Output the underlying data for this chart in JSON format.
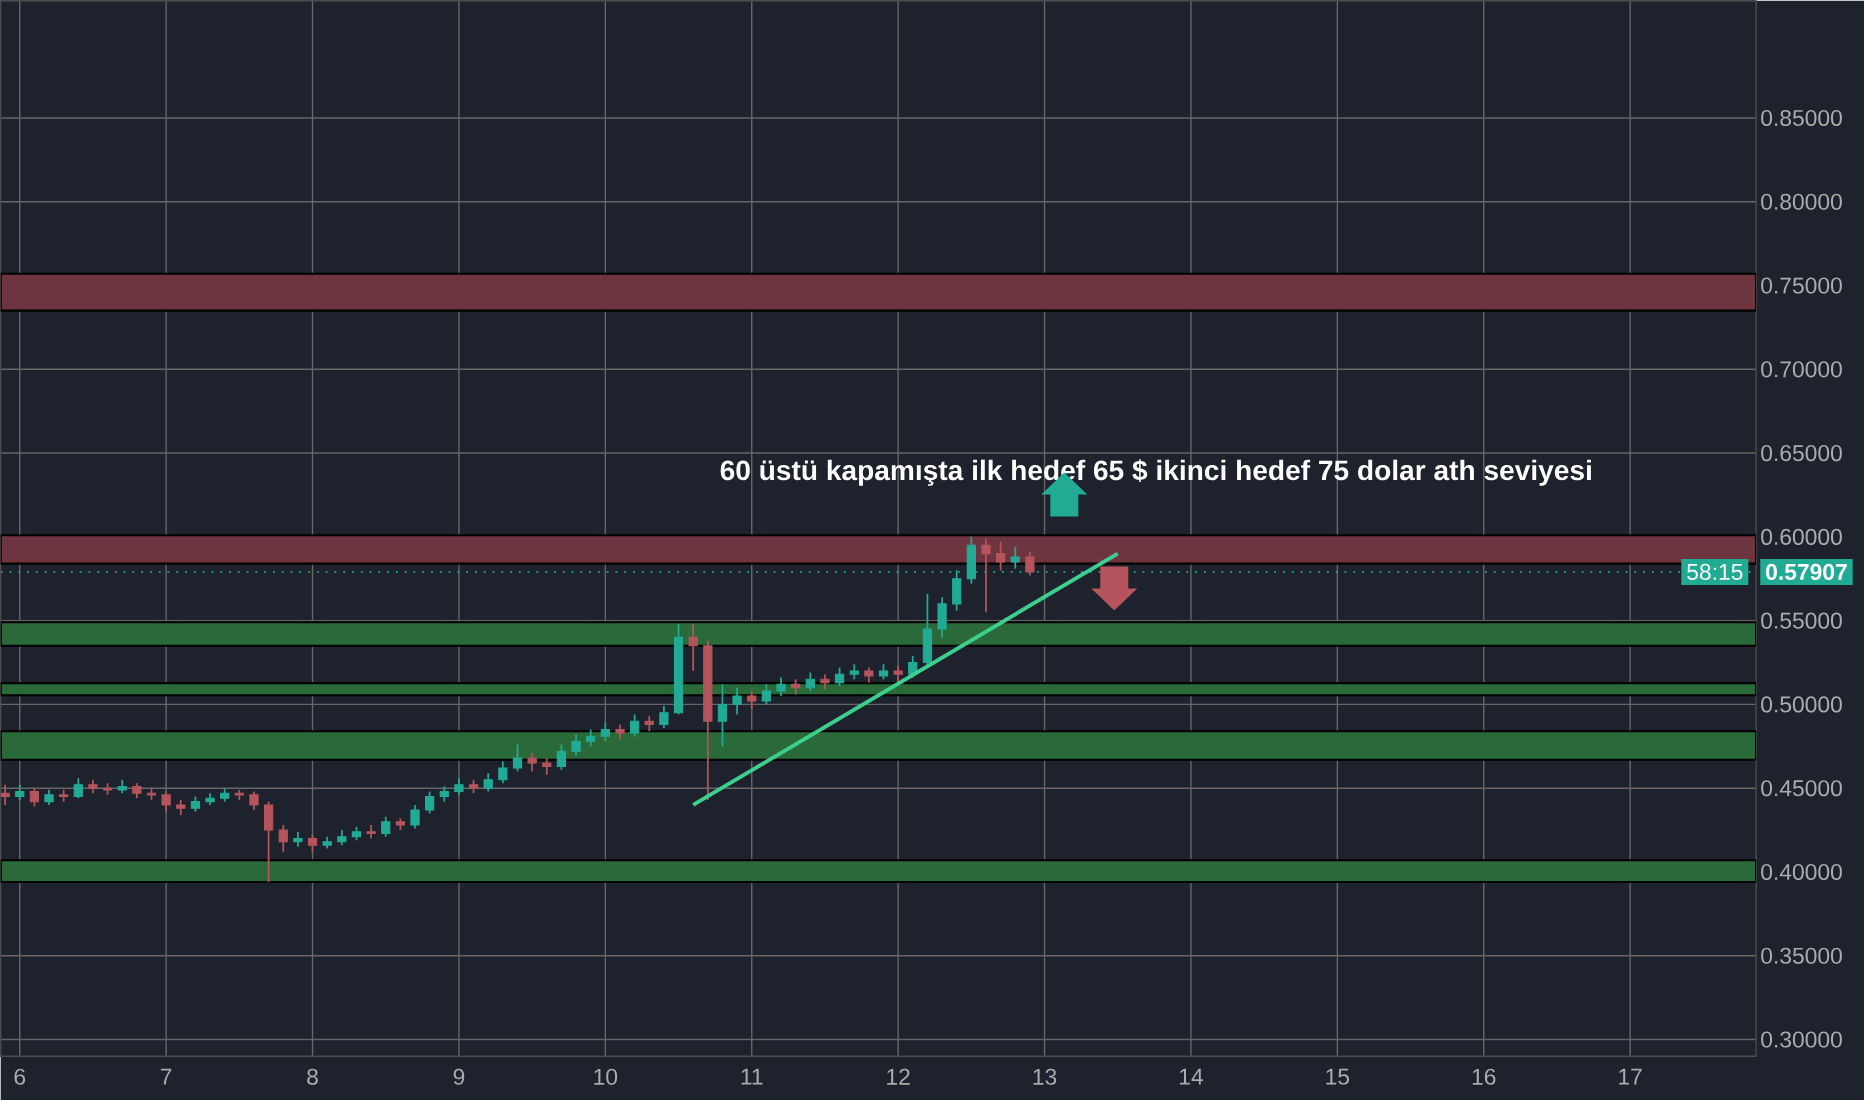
{
  "chart_data": {
    "type": "candlestick",
    "x": [
      5.9,
      6.0,
      6.1,
      6.2,
      6.3,
      6.4,
      6.5,
      6.6,
      6.7,
      6.8,
      6.9,
      7.0,
      7.1,
      7.2,
      7.3,
      7.4,
      7.5,
      7.6,
      7.7,
      7.8,
      7.9,
      8.0,
      8.1,
      8.2,
      8.3,
      8.4,
      8.5,
      8.6,
      8.7,
      8.8,
      8.9,
      9.0,
      9.1,
      9.2,
      9.3,
      9.4,
      9.5,
      9.6,
      9.7,
      9.8,
      9.9,
      10.0,
      10.1,
      10.2,
      10.3,
      10.4,
      10.5,
      10.6,
      10.7,
      10.8,
      10.9,
      11.0,
      11.1,
      11.2,
      11.3,
      11.4,
      11.5,
      11.6,
      11.7,
      11.8,
      11.9,
      12.0,
      12.1,
      12.2,
      12.3,
      12.4,
      12.5,
      12.6,
      12.7,
      12.8,
      12.9
    ],
    "ohlc": [
      [
        0.447,
        0.452,
        0.44,
        0.445
      ],
      [
        0.445,
        0.452,
        0.443,
        0.448
      ],
      [
        0.448,
        0.45,
        0.439,
        0.442
      ],
      [
        0.442,
        0.449,
        0.44,
        0.446
      ],
      [
        0.446,
        0.449,
        0.442,
        0.445
      ],
      [
        0.445,
        0.456,
        0.444,
        0.452
      ],
      [
        0.452,
        0.455,
        0.447,
        0.45
      ],
      [
        0.45,
        0.453,
        0.446,
        0.449
      ],
      [
        0.449,
        0.455,
        0.447,
        0.451
      ],
      [
        0.451,
        0.453,
        0.444,
        0.447
      ],
      [
        0.447,
        0.45,
        0.443,
        0.446
      ],
      [
        0.446,
        0.448,
        0.436,
        0.44
      ],
      [
        0.44,
        0.443,
        0.434,
        0.438
      ],
      [
        0.438,
        0.445,
        0.436,
        0.442
      ],
      [
        0.442,
        0.447,
        0.44,
        0.444
      ],
      [
        0.444,
        0.45,
        0.442,
        0.447
      ],
      [
        0.447,
        0.449,
        0.443,
        0.446
      ],
      [
        0.446,
        0.448,
        0.437,
        0.44
      ],
      [
        0.44,
        0.442,
        0.394,
        0.425
      ],
      [
        0.425,
        0.428,
        0.412,
        0.418
      ],
      [
        0.418,
        0.424,
        0.415,
        0.42
      ],
      [
        0.42,
        0.422,
        0.412,
        0.416
      ],
      [
        0.416,
        0.421,
        0.414,
        0.418
      ],
      [
        0.418,
        0.425,
        0.416,
        0.421
      ],
      [
        0.421,
        0.427,
        0.419,
        0.424
      ],
      [
        0.424,
        0.428,
        0.42,
        0.423
      ],
      [
        0.423,
        0.433,
        0.421,
        0.43
      ],
      [
        0.43,
        0.432,
        0.425,
        0.428
      ],
      [
        0.428,
        0.44,
        0.426,
        0.437
      ],
      [
        0.437,
        0.448,
        0.435,
        0.445
      ],
      [
        0.445,
        0.451,
        0.442,
        0.448
      ],
      [
        0.448,
        0.456,
        0.446,
        0.452
      ],
      [
        0.452,
        0.455,
        0.447,
        0.45
      ],
      [
        0.45,
        0.459,
        0.448,
        0.455
      ],
      [
        0.455,
        0.466,
        0.453,
        0.462
      ],
      [
        0.462,
        0.476,
        0.46,
        0.468
      ],
      [
        0.468,
        0.471,
        0.46,
        0.465
      ],
      [
        0.465,
        0.468,
        0.458,
        0.463
      ],
      [
        0.463,
        0.476,
        0.461,
        0.472
      ],
      [
        0.472,
        0.482,
        0.469,
        0.478
      ],
      [
        0.478,
        0.485,
        0.475,
        0.481
      ],
      [
        0.481,
        0.489,
        0.478,
        0.485
      ],
      [
        0.485,
        0.488,
        0.479,
        0.483
      ],
      [
        0.483,
        0.494,
        0.481,
        0.49
      ],
      [
        0.49,
        0.493,
        0.484,
        0.488
      ],
      [
        0.488,
        0.499,
        0.486,
        0.495
      ],
      [
        0.495,
        0.548,
        0.494,
        0.54
      ],
      [
        0.54,
        0.548,
        0.52,
        0.535
      ],
      [
        0.535,
        0.538,
        0.443,
        0.49
      ],
      [
        0.49,
        0.512,
        0.475,
        0.5
      ],
      [
        0.5,
        0.51,
        0.494,
        0.505
      ],
      [
        0.505,
        0.508,
        0.497,
        0.502
      ],
      [
        0.502,
        0.512,
        0.5,
        0.508
      ],
      [
        0.508,
        0.516,
        0.505,
        0.512
      ],
      [
        0.512,
        0.515,
        0.506,
        0.51
      ],
      [
        0.51,
        0.519,
        0.508,
        0.515
      ],
      [
        0.515,
        0.518,
        0.509,
        0.513
      ],
      [
        0.513,
        0.522,
        0.511,
        0.518
      ],
      [
        0.518,
        0.524,
        0.515,
        0.52
      ],
      [
        0.52,
        0.522,
        0.513,
        0.517
      ],
      [
        0.517,
        0.524,
        0.515,
        0.52
      ],
      [
        0.52,
        0.523,
        0.512,
        0.518
      ],
      [
        0.518,
        0.529,
        0.516,
        0.525
      ],
      [
        0.525,
        0.566,
        0.523,
        0.545
      ],
      [
        0.545,
        0.564,
        0.54,
        0.56
      ],
      [
        0.56,
        0.58,
        0.556,
        0.575
      ],
      [
        0.575,
        0.6,
        0.572,
        0.595
      ],
      [
        0.595,
        0.599,
        0.555,
        0.59
      ],
      [
        0.59,
        0.597,
        0.58,
        0.585
      ],
      [
        0.585,
        0.594,
        0.581,
        0.588
      ],
      [
        0.588,
        0.591,
        0.577,
        0.579
      ]
    ],
    "colors": [
      "#b5545c",
      "#22ab94",
      "#b5545c",
      "#22ab94",
      "#b5545c",
      "#22ab94",
      "#b5545c",
      "#b5545c",
      "#22ab94",
      "#b5545c",
      "#b5545c",
      "#b5545c",
      "#b5545c",
      "#22ab94",
      "#22ab94",
      "#22ab94",
      "#b5545c",
      "#b5545c",
      "#b5545c",
      "#b5545c",
      "#22ab94",
      "#b5545c",
      "#22ab94",
      "#22ab94",
      "#22ab94",
      "#b5545c",
      "#22ab94",
      "#b5545c",
      "#22ab94",
      "#22ab94",
      "#22ab94",
      "#22ab94",
      "#b5545c",
      "#22ab94",
      "#22ab94",
      "#22ab94",
      "#b5545c",
      "#b5545c",
      "#22ab94",
      "#22ab94",
      "#22ab94",
      "#22ab94",
      "#b5545c",
      "#22ab94",
      "#b5545c",
      "#22ab94",
      "#22ab94",
      "#b5545c",
      "#b5545c",
      "#22ab94",
      "#22ab94",
      "#b5545c",
      "#22ab94",
      "#22ab94",
      "#b5545c",
      "#22ab94",
      "#b5545c",
      "#22ab94",
      "#22ab94",
      "#b5545c",
      "#22ab94",
      "#b5545c",
      "#22ab94",
      "#22ab94",
      "#22ab94",
      "#22ab94",
      "#22ab94",
      "#b5545c",
      "#b5545c",
      "#22ab94",
      "#b5545c"
    ],
    "series": [
      {
        "type": "line",
        "x": [
          10.6,
          13.5
        ],
        "values": [
          0.44,
          0.59
        ],
        "color": "#3ccf8e"
      }
    ],
    "xlim": [
      5.87,
      17.86
    ],
    "ylim": [
      0.29,
      0.92
    ],
    "xticks": [
      6,
      7,
      8,
      9,
      10,
      11,
      12,
      13,
      14,
      15,
      16,
      17
    ],
    "yticks": [
      {
        "value": 0.3,
        "label": "0.30000"
      },
      {
        "value": 0.35,
        "label": "0.35000"
      },
      {
        "value": 0.4,
        "label": "0.40000"
      },
      {
        "value": 0.45,
        "label": "0.45000"
      },
      {
        "value": 0.5,
        "label": "0.50000"
      },
      {
        "value": 0.55,
        "label": "0.55000"
      },
      {
        "value": 0.6,
        "label": "0.60000"
      },
      {
        "value": 0.65,
        "label": "0.65000"
      },
      {
        "value": 0.7,
        "label": "0.70000"
      },
      {
        "value": 0.75,
        "label": "0.75000"
      },
      {
        "value": 0.8,
        "label": "0.80000"
      },
      {
        "value": 0.85,
        "label": "0.85000"
      }
    ],
    "grid": true,
    "bands": [
      {
        "axis": "y",
        "from": 0.735,
        "to": 0.757,
        "color": "#6e3540"
      },
      {
        "axis": "y",
        "from": 0.584,
        "to": 0.601,
        "color": "#6e3540"
      },
      {
        "axis": "y",
        "from": 0.535,
        "to": 0.549,
        "color": "#2a6a38"
      },
      {
        "axis": "y",
        "from": 0.5055,
        "to": 0.5127,
        "color": "#2a6a38"
      },
      {
        "axis": "y",
        "from": 0.467,
        "to": 0.484,
        "color": "#2a6a38"
      },
      {
        "axis": "y",
        "from": 0.394,
        "to": 0.407,
        "color": "#2a6a38"
      }
    ],
    "ref_lines": [
      {
        "axis": "y",
        "value": 0.57907,
        "label": "0.57907",
        "color": "#22ab94",
        "line_style": "dotted"
      }
    ],
    "annotations": [
      "60 üstü kapamışta ilk hedef  65 $ ikinci hedef 75 dolar ath seviyesi",
      "58:15"
    ]
  }
}
